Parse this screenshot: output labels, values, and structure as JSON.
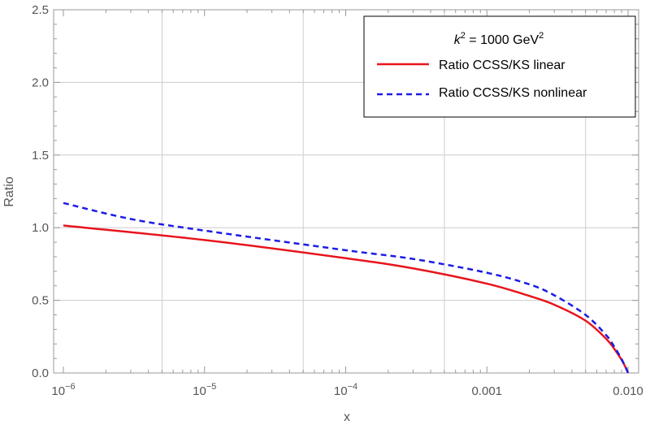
{
  "chart_data": {
    "type": "line",
    "xscale": "log",
    "xlim": [
      1e-06,
      0.01
    ],
    "ylim": [
      0,
      2.5
    ],
    "xlabel": "x",
    "ylabel": "Ratio",
    "grid": true,
    "x_ticks": [
      {
        "value": 1e-06,
        "base": "10",
        "exp": "−6"
      },
      {
        "value": 1e-05,
        "base": "10",
        "exp": "−5"
      },
      {
        "value": 0.0001,
        "base": "10",
        "exp": "−4"
      },
      {
        "value": 0.001,
        "label": "0.001"
      },
      {
        "value": 0.01,
        "label": "0.010"
      }
    ],
    "y_ticks": [
      {
        "value": 0.0,
        "label": "0.0"
      },
      {
        "value": 0.5,
        "label": "0.5"
      },
      {
        "value": 1.0,
        "label": "1.0"
      },
      {
        "value": 1.5,
        "label": "1.5"
      },
      {
        "value": 2.0,
        "label": "2.0"
      },
      {
        "value": 2.5,
        "label": "2.5"
      }
    ],
    "legend": {
      "position": "top-right",
      "title": {
        "k": "k",
        "k_sup": "2",
        "mid": " = 1000 GeV",
        "gev_sup": "2"
      }
    },
    "series": [
      {
        "name": "Ratio CCSS/KS linear",
        "color": "#e8141c",
        "dash": "solid",
        "points": [
          [
            1e-06,
            1.015
          ],
          [
            1e-05,
            0.915
          ],
          [
            0.0001,
            0.79
          ],
          [
            0.0003,
            0.72
          ],
          [
            0.001,
            0.615
          ],
          [
            0.002,
            0.53
          ],
          [
            0.003,
            0.47
          ],
          [
            0.005,
            0.36
          ],
          [
            0.007,
            0.235
          ],
          [
            0.008,
            0.165
          ],
          [
            0.009,
            0.09
          ],
          [
            0.0097,
            0.03
          ],
          [
            0.01,
            0.0
          ]
        ]
      },
      {
        "name": "Ratio CCSS/KS nonlinear",
        "color": "#1c1ce6",
        "dash": "dashed",
        "points": [
          [
            1e-06,
            1.17
          ],
          [
            3e-06,
            1.06
          ],
          [
            1e-05,
            0.98
          ],
          [
            0.0001,
            0.845
          ],
          [
            0.0003,
            0.785
          ],
          [
            0.001,
            0.69
          ],
          [
            0.002,
            0.61
          ],
          [
            0.003,
            0.535
          ],
          [
            0.005,
            0.4
          ],
          [
            0.007,
            0.26
          ],
          [
            0.008,
            0.18
          ],
          [
            0.009,
            0.095
          ],
          [
            0.0097,
            0.03
          ],
          [
            0.01,
            0.0
          ]
        ]
      }
    ]
  }
}
